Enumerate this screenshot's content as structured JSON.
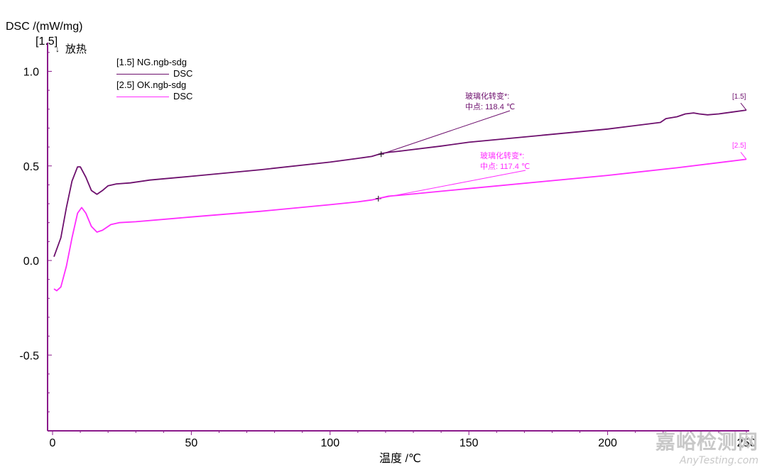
{
  "chart_data": {
    "type": "line",
    "ylabel": "DSC /(mW/mg)",
    "ylabel_bracket": "[1.5]",
    "exo_label": "放热",
    "exo_direction": "down",
    "xlabel": "温度 /℃",
    "xlim": [
      0,
      250
    ],
    "ylim": [
      -0.9,
      1.15
    ],
    "x_ticks": [
      "0",
      "50",
      "100",
      "150",
      "200",
      "250"
    ],
    "y_ticks": [
      "1.0",
      "0.5",
      "0.0",
      "-0.5"
    ],
    "legend": [
      {
        "id": "[1.5]",
        "file": "NG.ngb-sdg",
        "signal": "DSC",
        "color": "#6d0f6d"
      },
      {
        "id": "[2.5]",
        "file": "OK.ngb-sdg",
        "signal": "DSC",
        "color": "#ff2cff"
      }
    ],
    "series": [
      {
        "name": "[1.5] NG.ngb-sdg DSC",
        "color": "#6d0f6d",
        "end_tag": "[1.5]",
        "points": [
          [
            0.5,
            0.02
          ],
          [
            3,
            0.12
          ],
          [
            5,
            0.28
          ],
          [
            7,
            0.42
          ],
          [
            9,
            0.495
          ],
          [
            10,
            0.495
          ],
          [
            12,
            0.44
          ],
          [
            14,
            0.37
          ],
          [
            16,
            0.35
          ],
          [
            18,
            0.37
          ],
          [
            20,
            0.395
          ],
          [
            23,
            0.405
          ],
          [
            28,
            0.41
          ],
          [
            35,
            0.425
          ],
          [
            50,
            0.445
          ],
          [
            75,
            0.48
          ],
          [
            100,
            0.52
          ],
          [
            110,
            0.54
          ],
          [
            115,
            0.55
          ],
          [
            118.4,
            0.565
          ],
          [
            121,
            0.572
          ],
          [
            125,
            0.578
          ],
          [
            140,
            0.605
          ],
          [
            150,
            0.625
          ],
          [
            175,
            0.66
          ],
          [
            200,
            0.695
          ],
          [
            219,
            0.73
          ],
          [
            221,
            0.75
          ],
          [
            225,
            0.76
          ],
          [
            228,
            0.775
          ],
          [
            231,
            0.78
          ],
          [
            233,
            0.775
          ],
          [
            236,
            0.77
          ],
          [
            240,
            0.775
          ],
          [
            245,
            0.785
          ],
          [
            250,
            0.795
          ]
        ]
      },
      {
        "name": "[2.5] OK.ngb-sdg DSC",
        "color": "#ff2cff",
        "end_tag": "[2.5]",
        "points": [
          [
            0.5,
            -0.15
          ],
          [
            1.5,
            -0.16
          ],
          [
            3,
            -0.14
          ],
          [
            5,
            -0.03
          ],
          [
            7,
            0.12
          ],
          [
            9,
            0.25
          ],
          [
            10.5,
            0.28
          ],
          [
            12,
            0.25
          ],
          [
            14,
            0.18
          ],
          [
            16,
            0.15
          ],
          [
            18,
            0.16
          ],
          [
            21,
            0.19
          ],
          [
            24,
            0.2
          ],
          [
            30,
            0.205
          ],
          [
            50,
            0.23
          ],
          [
            75,
            0.26
          ],
          [
            100,
            0.295
          ],
          [
            110,
            0.31
          ],
          [
            115,
            0.32
          ],
          [
            118,
            0.33
          ],
          [
            121,
            0.34
          ],
          [
            125,
            0.345
          ],
          [
            150,
            0.38
          ],
          [
            175,
            0.415
          ],
          [
            200,
            0.45
          ],
          [
            225,
            0.49
          ],
          [
            250,
            0.535
          ]
        ]
      }
    ],
    "annotations": [
      {
        "title": "玻璃化转变*:",
        "label": "中点:",
        "value": "118.4 ℃",
        "x": 118.4,
        "y": 0.562,
        "color": "#6d0f6d"
      },
      {
        "title": "玻璃化转变*:",
        "label": "中点:",
        "value": "117.4 ℃",
        "x": 117.4,
        "y": 0.327,
        "color": "#ff2cff"
      }
    ]
  },
  "watermark": {
    "cn": "嘉峪检测网",
    "en": "AnyTesting.com"
  }
}
